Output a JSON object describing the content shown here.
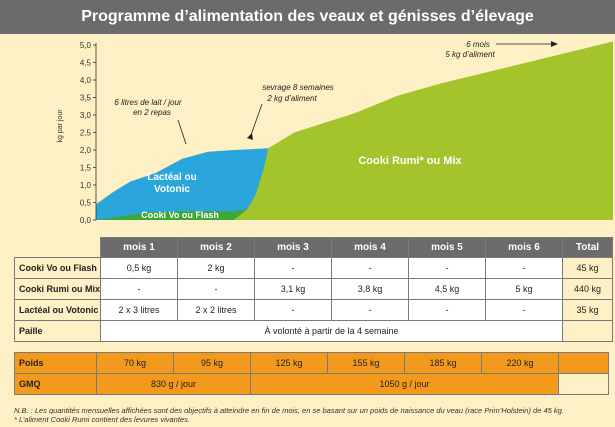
{
  "title": "Programme d’alimentation des veaux et génisses d’élevage",
  "chart_data": {
    "type": "area",
    "ylabel": "kg par jour",
    "yticks": [
      "5,0",
      "4,5",
      "4,0",
      "3,5",
      "3,0",
      "2,5",
      "2,0",
      "1,5",
      "1,0",
      "0,5",
      "0,0"
    ],
    "ylim": [
      0,
      5.0
    ],
    "xlim": [
      0,
      6
    ],
    "series": [
      {
        "name": "Lactéal ou Votonic",
        "color": "#2aa6dc",
        "points": [
          [
            0,
            0.45
          ],
          [
            0.2,
            0.8
          ],
          [
            0.4,
            1.1
          ],
          [
            0.7,
            1.35
          ],
          [
            1.0,
            1.75
          ],
          [
            1.3,
            1.95
          ],
          [
            1.6,
            2.0
          ],
          [
            2.0,
            2.05
          ],
          [
            2.0,
            0.0
          ],
          [
            0,
            0
          ]
        ]
      },
      {
        "name": "Cooki Vo ou Flash",
        "color": "#3ca836",
        "points": [
          [
            0,
            0
          ],
          [
            0.3,
            0.1
          ],
          [
            0.6,
            0.22
          ],
          [
            1.0,
            0.25
          ],
          [
            1.6,
            0.25
          ],
          [
            1.75,
            0.3
          ],
          [
            1.85,
            0.7
          ],
          [
            1.95,
            1.5
          ],
          [
            2.0,
            2.05
          ],
          [
            2.0,
            0.0
          ]
        ]
      },
      {
        "name": "Cooki Rumi* ou Mix",
        "color": "#a3c42a",
        "points": [
          [
            1.6,
            0.0
          ],
          [
            1.75,
            0.3
          ],
          [
            1.85,
            0.7
          ],
          [
            1.95,
            1.5
          ],
          [
            2.0,
            2.05
          ],
          [
            2.3,
            2.5
          ],
          [
            3.0,
            3.05
          ],
          [
            3.5,
            3.55
          ],
          [
            4.0,
            3.9
          ],
          [
            5.0,
            4.5
          ],
          [
            6.0,
            5.1
          ],
          [
            6.0,
            0.0
          ]
        ]
      }
    ],
    "annotations": {
      "milk_line1": "6 litres de lait / jour",
      "milk_line2": "en 2 repas",
      "sevrage_line1": "sevrage 8 semaines",
      "sevrage_line2": "2 kg d’aliment",
      "six_line1": "6 mois",
      "six_line2": "5 kg d’aliment"
    },
    "area_labels": {
      "lacteal_line1": "Lactéal ou",
      "lacteal_line2": "Votonic",
      "cookivo": "Cooki Vo ou Flash",
      "cookirumi": "Cooki Rumi* ou Mix"
    }
  },
  "table": {
    "headers": [
      "mois 1",
      "mois 2",
      "mois 3",
      "mois 4",
      "mois 5",
      "mois 6",
      "Total"
    ],
    "rows": [
      {
        "label": "Cooki Vo ou Flash",
        "cells": [
          "0,5 kg",
          "2 kg",
          "-",
          "-",
          "-",
          "-",
          "45 kg"
        ]
      },
      {
        "label": "Cooki Rumi ou Mix",
        "cells": [
          "-",
          "-",
          "3,1 kg",
          "3,8 kg",
          "4,5 kg",
          "5 kg",
          "440 kg"
        ]
      },
      {
        "label": "Lactéal ou Votonic",
        "cells": [
          "2 x 3 litres",
          "2 x 2 litres",
          "-",
          "-",
          "-",
          "-",
          "35 kg"
        ]
      }
    ],
    "paille_label": "Paille",
    "paille_text": "À volonté à partir de la 4  semaine",
    "poids_label": "Poids",
    "poids": [
      "70 kg",
      "95 kg",
      "125 kg",
      "155 kg",
      "185 kg",
      "220 kg"
    ],
    "gmq_label": "GMQ",
    "gmq1": "830 g / jour",
    "gmq2": "1050 g / jour"
  },
  "note_line1": "N.B. : Les quantités mensuelles affichées sont des objectifs à atteindre en fin de mois, en se basant sur un poids de naissance du veau (race Prim’Holstein) de 45 kg.",
  "note_line2": "* L’aliment Cooki Rumi contient des levures vivantes."
}
